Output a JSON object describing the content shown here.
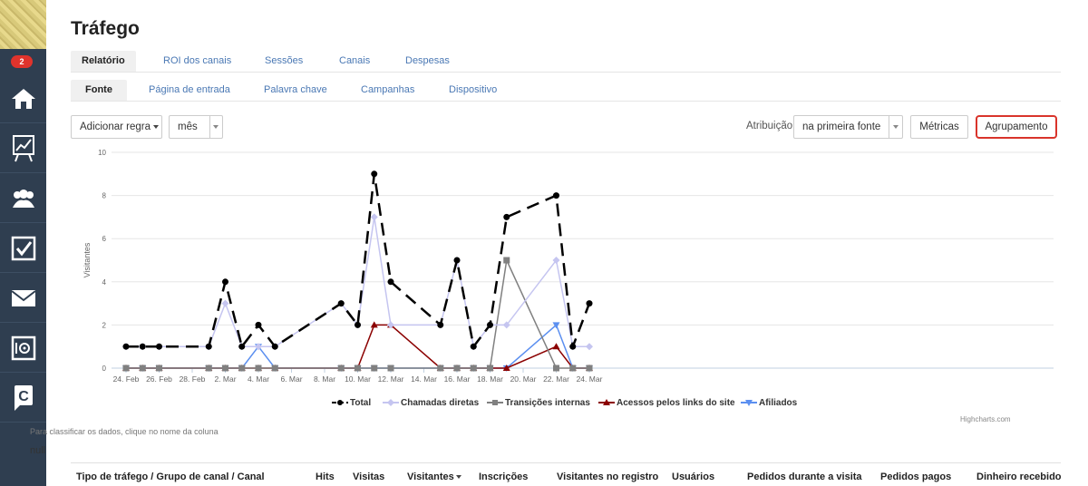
{
  "sidebar": {
    "badge": "2",
    "items": [
      {
        "icon": "home-icon"
      },
      {
        "icon": "chart-board-icon"
      },
      {
        "icon": "users-icon"
      },
      {
        "icon": "checkbox-icon"
      },
      {
        "icon": "mail-icon"
      },
      {
        "icon": "safe-icon"
      },
      {
        "icon": "brand-c-icon"
      }
    ]
  },
  "page": {
    "title": "Tráfego"
  },
  "tabs_primary": [
    "Relatório",
    "ROI dos canais",
    "Sessões",
    "Canais",
    "Despesas"
  ],
  "tabs_secondary": [
    "Fonte",
    "Página de entrada",
    "Palavra chave",
    "Campanhas",
    "Dispositivo"
  ],
  "toolbar": {
    "add_rule": "Adicionar regra",
    "period": "mês",
    "attribution_label": "Atribuição",
    "attribution_value": "na primeira fonte",
    "metrics": "Métricas",
    "grouping": "Agrupamento"
  },
  "chart_data": {
    "type": "line",
    "ylabel": "Visitantes",
    "ylim": [
      0,
      10
    ],
    "yticks": [
      "0",
      "2",
      "4",
      "6",
      "8",
      "10"
    ],
    "xtick_labels": [
      "24. Feb",
      "26. Feb",
      "28. Feb",
      "2. Mar",
      "4. Mar",
      "6. Mar",
      "8. Mar",
      "10. Mar",
      "12. Mar",
      "14. Mar",
      "16. Mar",
      "18. Mar",
      "20. Mar",
      "22. Mar",
      "24. Mar"
    ],
    "x": [
      "24. Feb",
      "25. Feb",
      "26. Feb",
      "1. Mar",
      "2. Mar",
      "3. Mar",
      "4. Mar",
      "5. Mar",
      "9. Mar",
      "10. Mar",
      "11. Mar",
      "12. Mar",
      "15. Mar",
      "16. Mar",
      "17. Mar",
      "18. Mar",
      "19. Mar",
      "22. Mar",
      "23. Mar",
      "24. Mar"
    ],
    "x_days": [
      0,
      1,
      2,
      5,
      6,
      7,
      8,
      9,
      13,
      14,
      15,
      16,
      19,
      20,
      21,
      22,
      23,
      26,
      27,
      28
    ],
    "series": [
      {
        "name": "Total",
        "color": "#000000",
        "marker": "circle",
        "dashed": true,
        "values": [
          1,
          1,
          1,
          1,
          4,
          1,
          2,
          1,
          3,
          2,
          9,
          4,
          2,
          5,
          1,
          2,
          7,
          8,
          1,
          3
        ]
      },
      {
        "name": "Chamadas diretas",
        "color": "#c5c5f0",
        "marker": "diamond",
        "values": [
          1,
          1,
          1,
          1,
          3,
          1,
          1,
          1,
          3,
          2,
          7,
          2,
          2,
          5,
          1,
          2,
          2,
          5,
          1,
          1
        ]
      },
      {
        "name": "Transições internas",
        "color": "#808080",
        "marker": "square",
        "values": [
          0,
          0,
          0,
          0,
          0,
          0,
          0,
          0,
          0,
          0,
          0,
          0,
          0,
          0,
          0,
          0,
          5,
          0,
          0,
          0
        ]
      },
      {
        "name": "Acessos pelos links do site",
        "color": "#8b0000",
        "marker": "triangle",
        "values": [
          0,
          0,
          0,
          0,
          0,
          0,
          0,
          0,
          0,
          0,
          2,
          2,
          0,
          0,
          0,
          0,
          0,
          1,
          0,
          0
        ]
      },
      {
        "name": "Afiliados",
        "color": "#5b8ff0",
        "marker": "triangle-down",
        "values": [
          0,
          0,
          0,
          0,
          0,
          0,
          1,
          0,
          0,
          0,
          0,
          0,
          0,
          0,
          0,
          0,
          0,
          2,
          0,
          0
        ]
      }
    ],
    "credit": "Highcharts.com"
  },
  "table": {
    "hint": "Para classificar os dados, clique no nome da coluna",
    "null_text": "null",
    "headers": [
      "Tipo de tráfego / Grupo de canal / Canal",
      "Hits",
      "Visitas",
      "Visitantes",
      "Inscrições",
      "Visitantes no registro",
      "Usuários",
      "Pedidos durante a visita",
      "Pedidos pagos",
      "Dinheiro recebido"
    ]
  }
}
